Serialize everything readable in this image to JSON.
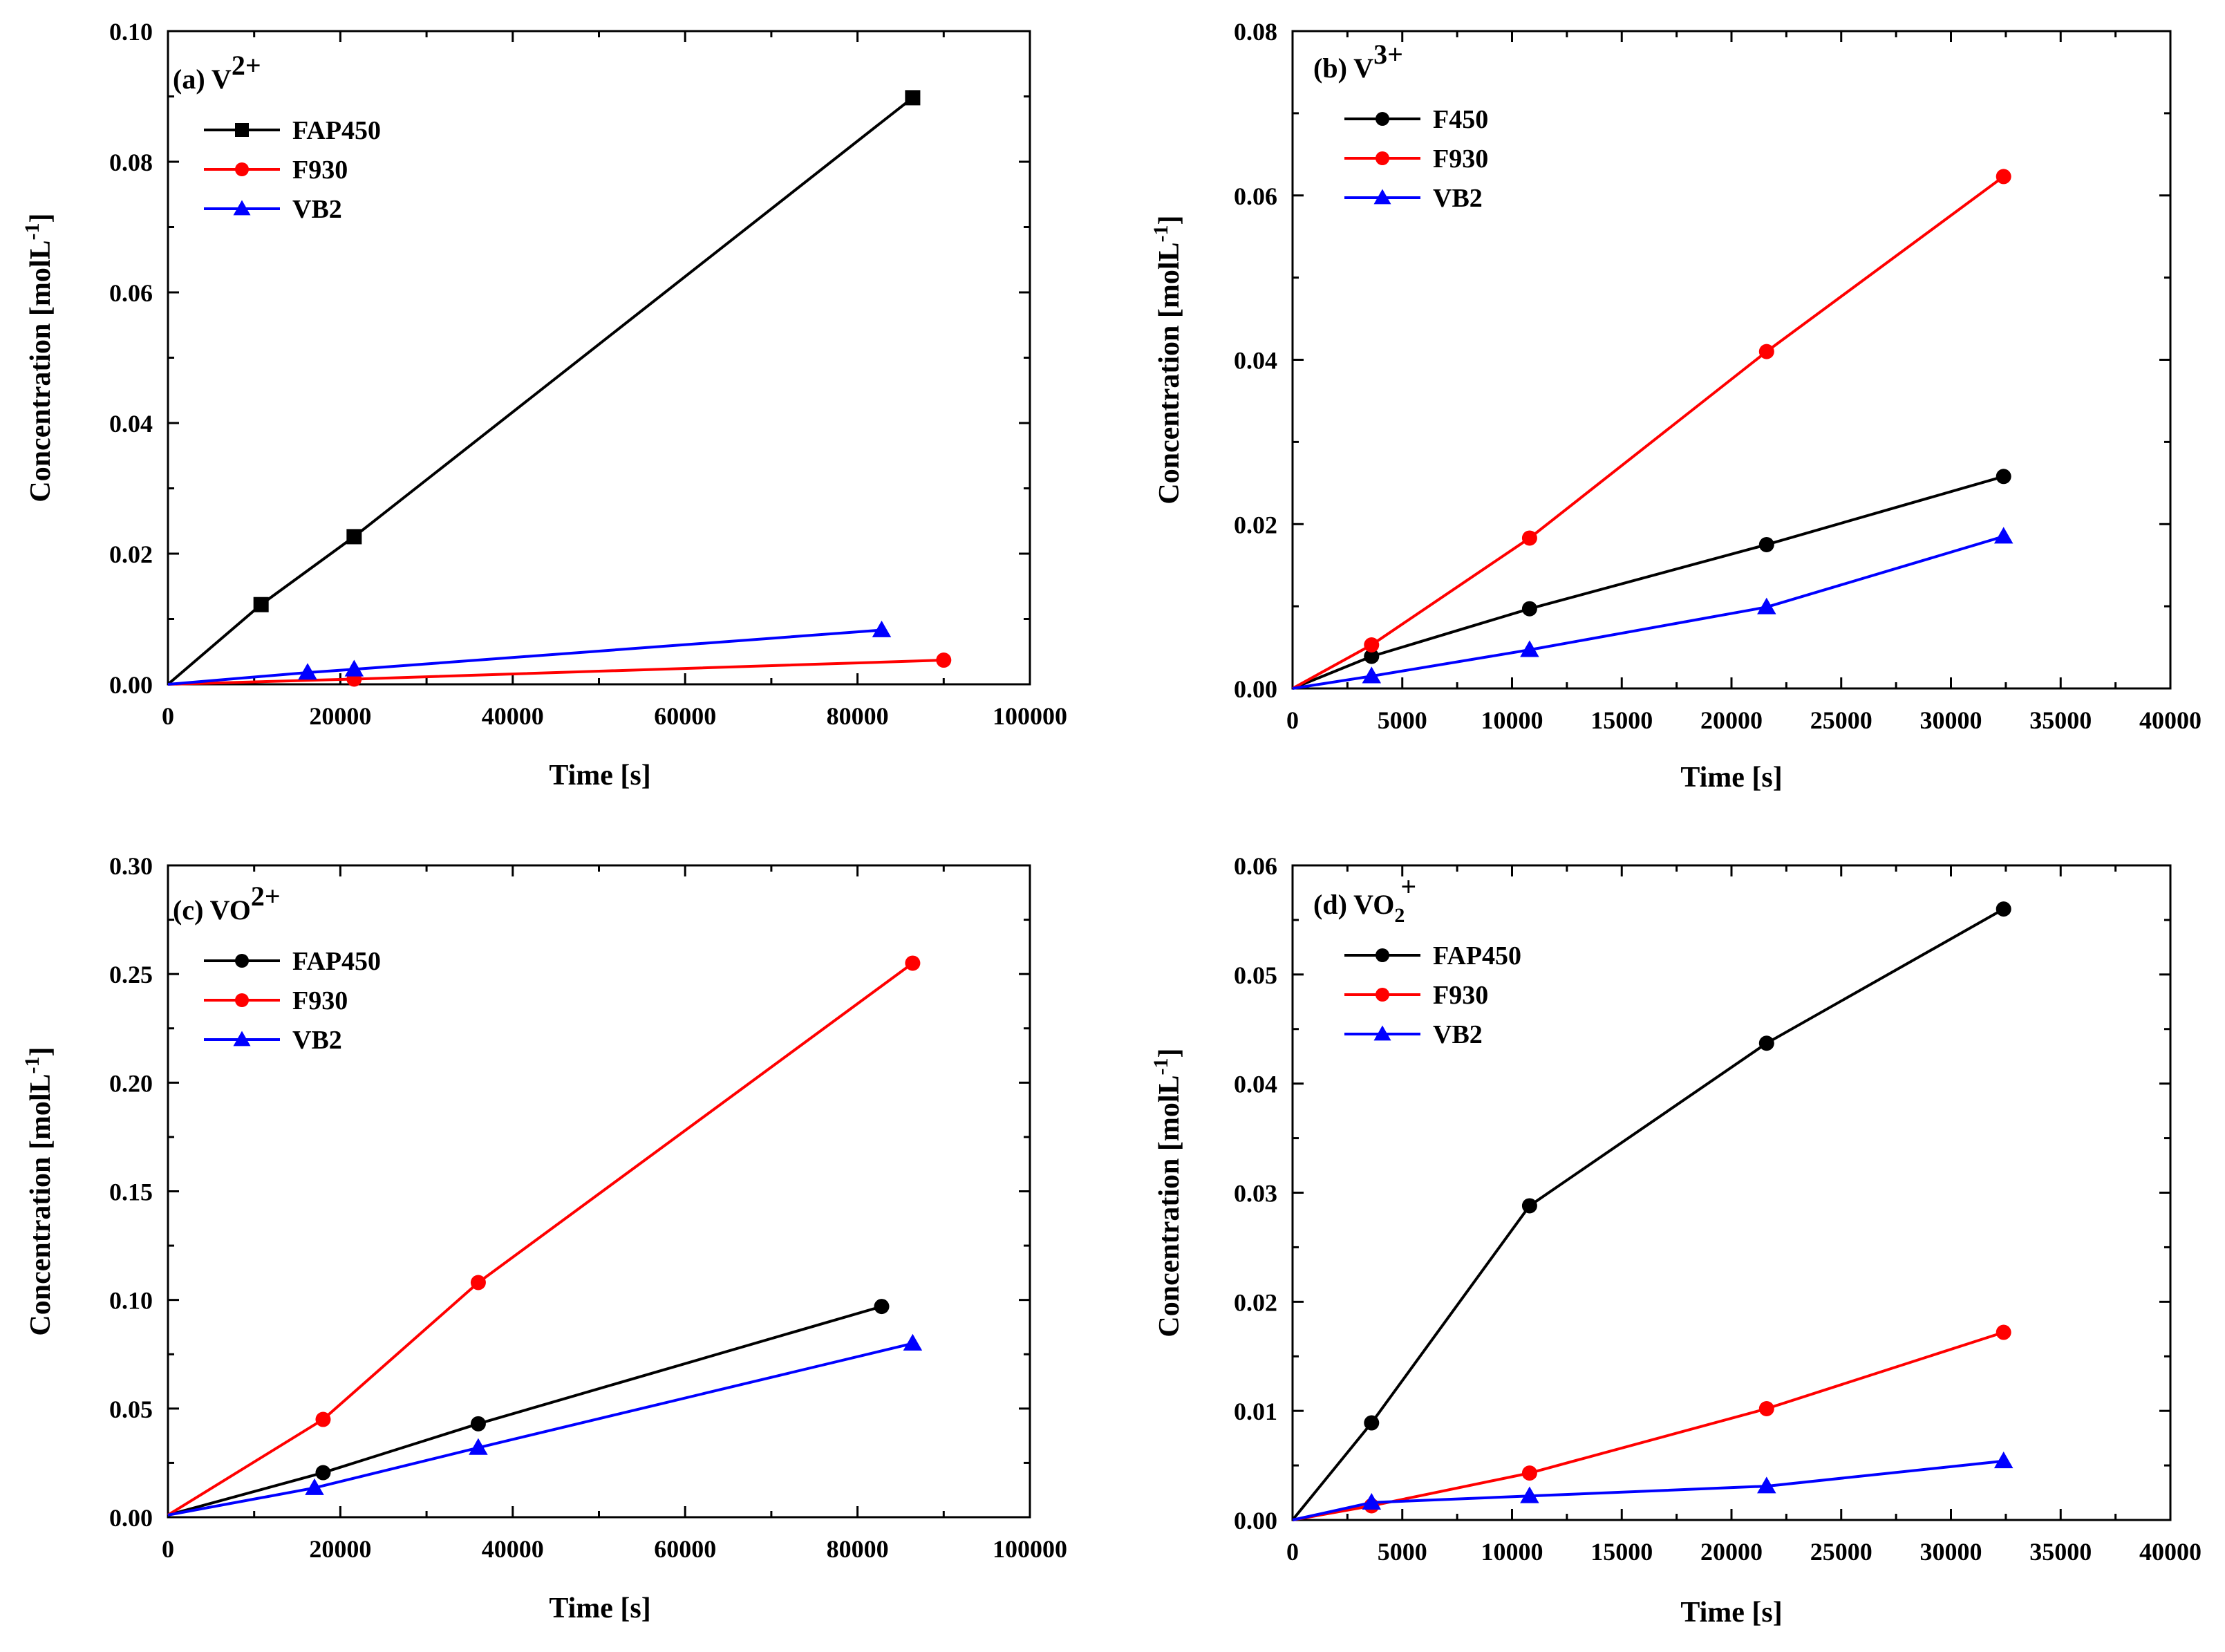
{
  "chart_data": [
    {
      "type": "line",
      "panel_label": "(a) V",
      "panel_sup": "2+",
      "panel_sub": "",
      "xlabel": "Time [s]",
      "ylabel": "Concentration [molL",
      "ylabel_sup": "-1",
      "ylabel_close": "]",
      "xlim": [
        0,
        100000
      ],
      "ylim": [
        0,
        0.1
      ],
      "xticks": [
        "0",
        "20000",
        "40000",
        "60000",
        "80000",
        "100000"
      ],
      "yticks": [
        "0.00",
        "0.02",
        "0.04",
        "0.06",
        "0.08",
        "0.10"
      ],
      "legend_position": "top-left",
      "series": [
        {
          "name": "FAP450",
          "color": "#000000",
          "marker": "square",
          "x": [
            0,
            10800,
            21600,
            86400
          ],
          "y": [
            0,
            0.0122,
            0.0226,
            0.0898
          ]
        },
        {
          "name": "F930",
          "color": "#ff0000",
          "marker": "circle",
          "x": [
            0,
            21600,
            90000
          ],
          "y": [
            0,
            0.0008,
            0.0037
          ]
        },
        {
          "name": "VB2",
          "color": "#0000ff",
          "marker": "triangle",
          "x": [
            0,
            16200,
            21600,
            82800
          ],
          "y": [
            0,
            0.0018,
            0.0023,
            0.0083
          ]
        }
      ]
    },
    {
      "type": "line",
      "panel_label": "(b) V",
      "panel_sup": "3+",
      "panel_sub": "",
      "xlabel": "Time [s]",
      "ylabel": "Concentration [molL",
      "ylabel_sup": "-1",
      "ylabel_close": "]",
      "xlim": [
        0,
        40000
      ],
      "ylim": [
        0,
        0.08
      ],
      "xticks": [
        "0",
        "5000",
        "10000",
        "15000",
        "20000",
        "25000",
        "30000",
        "35000",
        "40000"
      ],
      "yticks": [
        "0.00",
        "0.02",
        "0.04",
        "0.06",
        "0.08"
      ],
      "legend_position": "top-left",
      "series": [
        {
          "name": "F450",
          "color": "#000000",
          "marker": "circle",
          "x": [
            0,
            3600,
            10800,
            21600,
            32400
          ],
          "y": [
            0,
            0.0039,
            0.0097,
            0.0175,
            0.0258
          ]
        },
        {
          "name": "F930",
          "color": "#ff0000",
          "marker": "circle",
          "x": [
            0,
            3600,
            10800,
            21600,
            32400
          ],
          "y": [
            0,
            0.0053,
            0.0183,
            0.041,
            0.0623
          ]
        },
        {
          "name": "VB2",
          "color": "#0000ff",
          "marker": "triangle",
          "x": [
            0,
            3600,
            10800,
            21600,
            32400
          ],
          "y": [
            0,
            0.0015,
            0.0047,
            0.0099,
            0.0185
          ]
        }
      ]
    },
    {
      "type": "line",
      "panel_label": "(c) VO",
      "panel_sup": "2+",
      "panel_sub": "",
      "xlabel": "Time [s]",
      "ylabel": "Concentration [molL",
      "ylabel_sup": "-1",
      "ylabel_close": "]",
      "xlim": [
        0,
        100000
      ],
      "ylim": [
        0,
        0.3
      ],
      "xticks": [
        "0",
        "20000",
        "40000",
        "60000",
        "80000",
        "100000"
      ],
      "yticks": [
        "0.00",
        "0.05",
        "0.10",
        "0.15",
        "0.20",
        "0.25",
        "0.30"
      ],
      "legend_position": "top-left",
      "series": [
        {
          "name": "FAP450",
          "color": "#000000",
          "marker": "circle",
          "x": [
            0,
            18000,
            36000,
            82800
          ],
          "y": [
            0.001,
            0.0205,
            0.043,
            0.097
          ]
        },
        {
          "name": "F930",
          "color": "#ff0000",
          "marker": "circle",
          "x": [
            0,
            18000,
            36000,
            86400
          ],
          "y": [
            0.001,
            0.045,
            0.108,
            0.255
          ]
        },
        {
          "name": "VB2",
          "color": "#0000ff",
          "marker": "triangle",
          "x": [
            0,
            17000,
            36000,
            86400
          ],
          "y": [
            0.001,
            0.0135,
            0.032,
            0.08
          ]
        }
      ]
    },
    {
      "type": "line",
      "panel_label": "(d) VO",
      "panel_sup": "+",
      "panel_sub": "2",
      "xlabel": "Time [s]",
      "ylabel": "Concentration [molL",
      "ylabel_sup": "-1",
      "ylabel_close": "]",
      "xlim": [
        0,
        40000
      ],
      "ylim": [
        0,
        0.06
      ],
      "xticks": [
        "0",
        "5000",
        "10000",
        "15000",
        "20000",
        "25000",
        "30000",
        "35000",
        "40000"
      ],
      "yticks": [
        "0.00",
        "0.01",
        "0.02",
        "0.03",
        "0.04",
        "0.05",
        "0.06"
      ],
      "legend_position": "top-left",
      "series": [
        {
          "name": "FAP450",
          "color": "#000000",
          "marker": "circle",
          "x": [
            0,
            3600,
            10800,
            21600,
            32400
          ],
          "y": [
            0,
            0.0089,
            0.0288,
            0.0437,
            0.056
          ]
        },
        {
          "name": "F930",
          "color": "#ff0000",
          "marker": "circle",
          "x": [
            0,
            3600,
            10800,
            21600,
            32400
          ],
          "y": [
            0,
            0.0013,
            0.0043,
            0.0102,
            0.0172
          ]
        },
        {
          "name": "VB2",
          "color": "#0000ff",
          "marker": "triangle",
          "x": [
            0,
            3600,
            10800,
            21600,
            32400
          ],
          "y": [
            0,
            0.0016,
            0.0022,
            0.0031,
            0.0054
          ]
        }
      ]
    }
  ]
}
